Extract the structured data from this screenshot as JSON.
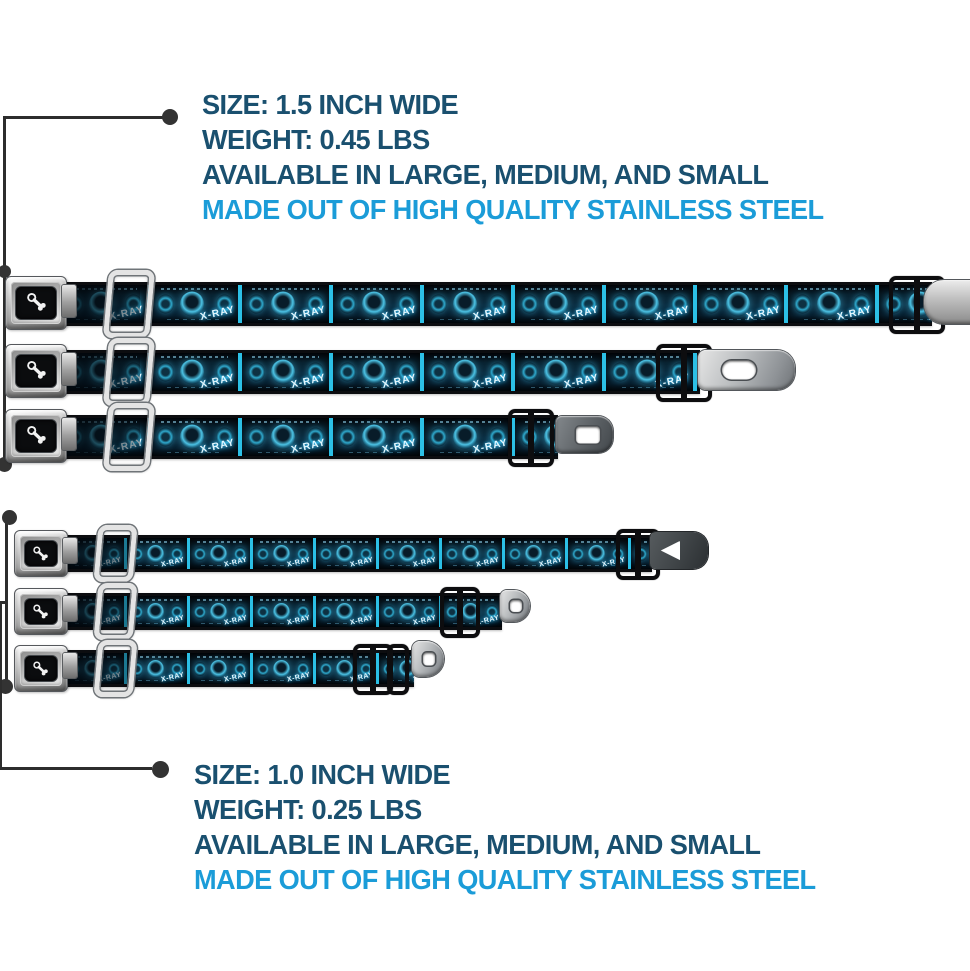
{
  "product": {
    "type": "seatbelt-buckle-dog-collars",
    "pattern": {
      "label": "X-RAY"
    },
    "icons": {
      "buckle_center": "dog-bone-icon",
      "leash_ring": "d-ring",
      "callout_marker": "dot"
    }
  },
  "info_blocks": {
    "top": {
      "size": "SIZE: 1.5 INCH WIDE",
      "weight": "WEIGHT: 0.45 LBS",
      "availability": "AVAILABLE IN LARGE, MEDIUM, AND SMALL",
      "material": "MADE OUT OF HIGH QUALITY STAINLESS STEEL"
    },
    "bottom": {
      "size": "SIZE: 1.0 INCH WIDE",
      "weight": "WEIGHT: 0.25 LBS",
      "availability": "AVAILABLE IN LARGE, MEDIUM, AND SMALL",
      "material": "MADE OUT OF HIGH QUALITY STAINLESS STEEL"
    }
  },
  "groups": [
    {
      "name": "collars-1.5-inch",
      "variants": [
        "large",
        "medium",
        "small"
      ]
    },
    {
      "name": "collars-1.0-inch",
      "variants": [
        "large",
        "medium",
        "small"
      ]
    }
  ],
  "colors": {
    "heading_dark": "#1a506f",
    "heading_accent": "#1b9cd8",
    "strap_cyan": "#2cc0e6",
    "strap_background": "#04121c",
    "callout_line": "#2d2d2d"
  }
}
